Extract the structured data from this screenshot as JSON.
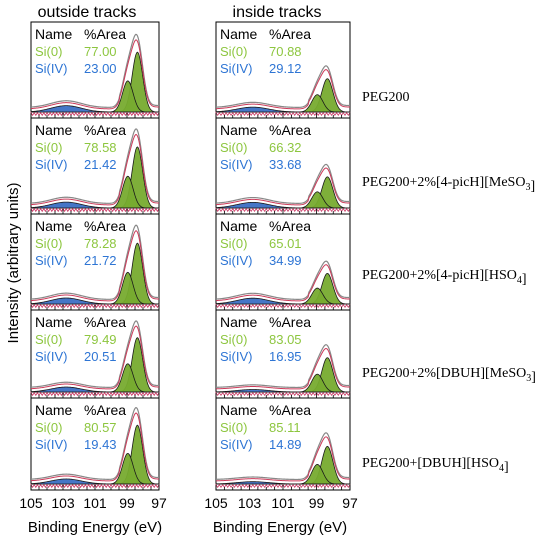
{
  "chart_data": {
    "type": "line",
    "xlabel": "Binding Energy (eV)",
    "ylabel": "Intensity (arbitrary units)",
    "xlim": [
      105,
      97
    ],
    "x_reversed": true,
    "x_ticks": [
      "105",
      "103",
      "101",
      "99",
      "97"
    ],
    "column_titles": [
      "outside tracks",
      "inside tracks"
    ],
    "table_header": [
      "Name",
      "%Area"
    ],
    "component_labels": [
      "Si(0)",
      "Si(IV)"
    ],
    "colors": {
      "si0": "#8dc63f",
      "si0_fill": "#77ab2f",
      "si4": "#2e75d4",
      "si4_fill": "#3b6fc4",
      "envelope": "#cc3b5a",
      "raw": "#888888"
    },
    "samples": [
      {
        "label": "PEG200",
        "label_parts": [
          [
            "PEG200",
            ""
          ]
        ],
        "outside": {
          "si0": "77.00",
          "si4": "23.00"
        },
        "inside": {
          "si0": "70.88",
          "si4": "29.12"
        }
      },
      {
        "label": "PEG200+2%[4-picH][MeSO3]",
        "label_parts": [
          [
            "PEG200+2%[4-picH][MeSO",
            "3"
          ],
          [
            "]",
            ""
          ]
        ],
        "outside": {
          "si0": "78.58",
          "si4": "21.42"
        },
        "inside": {
          "si0": "66.32",
          "si4": "33.68"
        }
      },
      {
        "label": "PEG200+2%[4-picH][HSO4]",
        "label_parts": [
          [
            "PEG200+2%[4-picH][HSO",
            "4"
          ],
          [
            "]",
            ""
          ]
        ],
        "outside": {
          "si0": "78.28",
          "si4": "21.72"
        },
        "inside": {
          "si0": "65.01",
          "si4": "34.99"
        }
      },
      {
        "label": "PEG200+2%[DBUH][MeSO3]",
        "label_parts": [
          [
            "PEG200+2%[DBUH][MeSO",
            "3"
          ],
          [
            "]",
            ""
          ]
        ],
        "outside": {
          "si0": "79.49",
          "si4": "20.51"
        },
        "inside": {
          "si0": "83.05",
          "si4": "16.95"
        }
      },
      {
        "label": "PEG200+[DBUH][HSO4]",
        "label_parts": [
          [
            "PEG200+[DBUH][HSO",
            "4"
          ],
          [
            "]",
            ""
          ]
        ],
        "outside": {
          "si0": "80.57",
          "si4": "19.43"
        },
        "inside": {
          "si0": "85.11",
          "si4": "14.89"
        }
      }
    ]
  }
}
